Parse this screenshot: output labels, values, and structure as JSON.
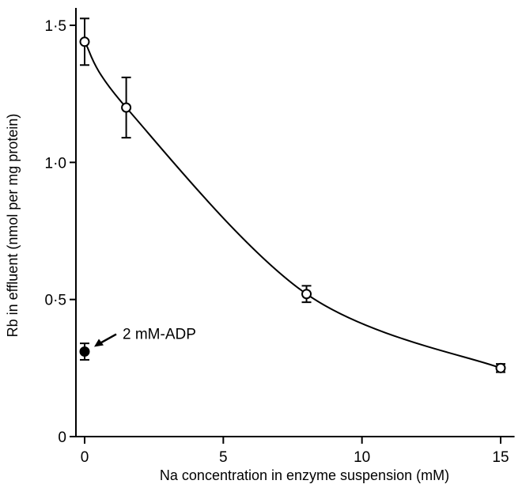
{
  "chart_data": {
    "type": "scatter",
    "xlabel": "Na concentration in enzyme suspension (mM)",
    "ylabel": "Rb in effluent (nmol per mg protein)",
    "xlim": [
      0,
      15.5
    ],
    "ylim": [
      0,
      1.55
    ],
    "x_ticks": [
      0,
      5,
      10,
      15
    ],
    "x_tick_labels": [
      "0",
      "5",
      "10",
      "15"
    ],
    "y_ticks": [
      0,
      0.5,
      1.0,
      1.5
    ],
    "y_tick_labels": [
      "0",
      "0·5",
      "1·0",
      "1·5"
    ],
    "grid": false,
    "series": [
      {
        "marker": "open-circle",
        "fit_curve": true,
        "points": [
          {
            "x": 0,
            "y": 1.44,
            "err": 0.085
          },
          {
            "x": 1.5,
            "y": 1.2,
            "err": 0.11
          },
          {
            "x": 8,
            "y": 0.52,
            "err": 0.03
          },
          {
            "x": 15,
            "y": 0.25,
            "err": 0.015
          }
        ]
      },
      {
        "marker": "filled-circle",
        "fit_curve": false,
        "points": [
          {
            "x": 0,
            "y": 0.31,
            "err": 0.03
          }
        ]
      }
    ],
    "annotations": [
      {
        "text": "2 mM-ADP",
        "x": 0,
        "y": 0.31,
        "arrow": true
      }
    ]
  }
}
